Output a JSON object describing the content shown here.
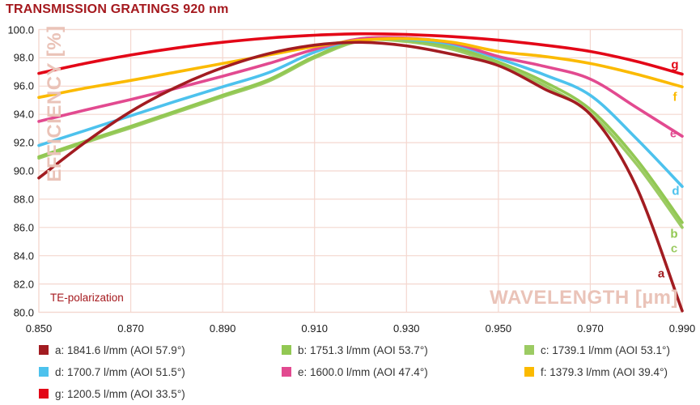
{
  "title": "TRANSMISSION GRATINGS 920 nm",
  "colors": {
    "background": "#ffffff",
    "title": "#a5191e",
    "grid": "#f4d7cf",
    "watermark": "#eac3b8",
    "annotation": "#a5191e",
    "tick_text": "#1a1a1a",
    "legend_text": "#333333"
  },
  "chart_data": {
    "type": "line",
    "title": "TRANSMISSION GRATINGS 920 nm",
    "xlabel": "WAVELENGTH [µm]",
    "ylabel": "EFFICIENCY [%]",
    "annotation": "TE-polarization",
    "grid": true,
    "legend_position": "bottom",
    "xlim": [
      0.85,
      0.99
    ],
    "ylim": [
      80.0,
      100.0
    ],
    "x_ticks": [
      {
        "value": 0.85,
        "label": "0.850"
      },
      {
        "value": 0.87,
        "label": "0.870"
      },
      {
        "value": 0.89,
        "label": "0.890"
      },
      {
        "value": 0.91,
        "label": "0.910"
      },
      {
        "value": 0.93,
        "label": "0.930"
      },
      {
        "value": 0.95,
        "label": "0.950"
      },
      {
        "value": 0.97,
        "label": "0.970"
      },
      {
        "value": 0.99,
        "label": "0.990"
      }
    ],
    "y_ticks": [
      {
        "value": 100.0,
        "label": "100.0"
      },
      {
        "value": 98.0,
        "label": "98.0"
      },
      {
        "value": 96.0,
        "label": "96.0"
      },
      {
        "value": 94.0,
        "label": "94.0"
      },
      {
        "value": 92.0,
        "label": "92.0"
      },
      {
        "value": 90.0,
        "label": "90.0"
      },
      {
        "value": 88.0,
        "label": "88.0"
      },
      {
        "value": 86.0,
        "label": "86.0"
      },
      {
        "value": 84.0,
        "label": "84.0"
      },
      {
        "value": 82.0,
        "label": "82.0"
      },
      {
        "value": 80.0,
        "label": "80.0"
      }
    ],
    "x": [
      0.85,
      0.86,
      0.87,
      0.88,
      0.89,
      0.9,
      0.91,
      0.92,
      0.93,
      0.94,
      0.95,
      0.96,
      0.97,
      0.98,
      0.99
    ],
    "series": [
      {
        "letter": "a",
        "label": "a: 1841.6 l/mm (AOI 57.9°)",
        "color": "#a21c21",
        "values": [
          89.5,
          92.0,
          94.2,
          95.95,
          97.3,
          98.3,
          98.9,
          99.1,
          98.85,
          98.25,
          97.45,
          95.8,
          94.0,
          88.9,
          80.1
        ]
      },
      {
        "letter": "b",
        "label": "b: 1751.3 l/mm (AOI 53.7°)",
        "color": "#92c853",
        "values": [
          91.0,
          92.1,
          93.15,
          94.25,
          95.35,
          96.45,
          98.1,
          99.3,
          99.25,
          98.75,
          97.7,
          96.3,
          94.35,
          90.85,
          86.35
        ]
      },
      {
        "letter": "c",
        "label": "c: 1739.1 l/mm (AOI 53.1°)",
        "color": "#9ccb63",
        "values": [
          90.9,
          92.0,
          93.05,
          94.15,
          95.25,
          96.35,
          98.0,
          99.2,
          99.15,
          98.6,
          97.5,
          96.05,
          94.05,
          90.5,
          86.0
        ]
      },
      {
        "letter": "d",
        "label": "d: 1700.7 l/mm (AOI 51.5°)",
        "color": "#4dc2ed",
        "values": [
          91.8,
          92.85,
          93.9,
          94.95,
          95.95,
          96.95,
          98.4,
          99.35,
          99.3,
          98.95,
          97.95,
          96.8,
          95.35,
          92.3,
          88.9
        ]
      },
      {
        "letter": "e",
        "label": "e: 1600.0 l/mm (AOI 47.4°)",
        "color": "#e24a90",
        "values": [
          93.5,
          94.3,
          95.05,
          95.85,
          96.7,
          97.6,
          98.6,
          99.35,
          99.4,
          99.05,
          98.1,
          97.4,
          96.5,
          94.5,
          92.45
        ]
      },
      {
        "letter": "f",
        "label": "f: 1379.3 l/mm (AOI 39.4°)",
        "color": "#fbba00",
        "values": [
          95.2,
          95.85,
          96.4,
          97.0,
          97.6,
          98.2,
          98.8,
          99.25,
          99.35,
          99.1,
          98.45,
          98.1,
          97.6,
          96.85,
          95.95
        ]
      },
      {
        "letter": "g",
        "label": "g: 1200.5 l/mm (AOI 33.5°)",
        "color": "#e30617",
        "values": [
          96.9,
          97.6,
          98.2,
          98.7,
          99.1,
          99.4,
          99.6,
          99.7,
          99.65,
          99.5,
          99.25,
          98.9,
          98.45,
          97.75,
          96.85
        ]
      }
    ],
    "draw_order": [
      "c",
      "b",
      "d",
      "e",
      "f",
      "a",
      "g"
    ],
    "legend_order": [
      "a",
      "b",
      "c",
      "d",
      "e",
      "f",
      "g"
    ]
  }
}
